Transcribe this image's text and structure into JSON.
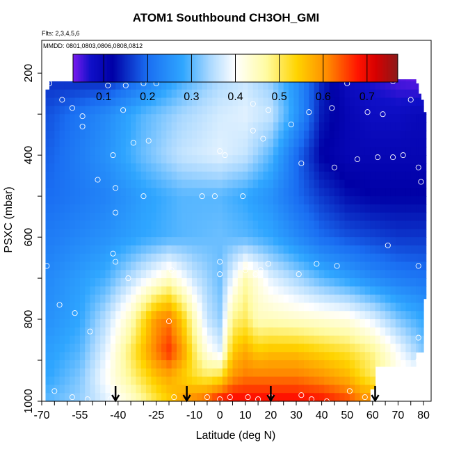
{
  "chart_data": {
    "type": "heatmap",
    "title": "ATOM1 Southbound CH3OH_GMI",
    "flights_note": "Flts: 2,3,4,5,6",
    "dates_note": "MMDD: 0801,0803,0806,0808,0812",
    "xlabel": "Latitude (deg N)",
    "ylabel": "PSXC (mbar)",
    "xlim": [
      -70,
      83
    ],
    "ylim": [
      1000,
      120
    ],
    "x_ticks": [
      -70,
      -55,
      -40,
      -25,
      -10,
      0,
      10,
      20,
      30,
      40,
      50,
      60,
      70,
      80
    ],
    "y_ticks": [
      200,
      400,
      600,
      800,
      1000
    ],
    "colorbar": {
      "min": 0.03,
      "max": 0.77,
      "ticks": [
        0.1,
        0.2,
        0.3,
        0.4,
        0.5,
        0.6,
        0.7
      ],
      "stops": [
        {
          "v": 0.03,
          "c": "#7a1bef"
        },
        {
          "v": 0.07,
          "c": "#1010c8"
        },
        {
          "v": 0.12,
          "c": "#0000a6"
        },
        {
          "v": 0.2,
          "c": "#1a6ef2"
        },
        {
          "v": 0.28,
          "c": "#2fa6ff"
        },
        {
          "v": 0.34,
          "c": "#a7d7ff"
        },
        {
          "v": 0.4,
          "c": "#ffffff"
        },
        {
          "v": 0.47,
          "c": "#fffba2"
        },
        {
          "v": 0.54,
          "c": "#ffd400"
        },
        {
          "v": 0.61,
          "c": "#ff8a00"
        },
        {
          "v": 0.68,
          "c": "#ff1300"
        },
        {
          "v": 0.72,
          "c": "#d60000"
        },
        {
          "v": 0.77,
          "c": "#8b1a1a"
        }
      ]
    },
    "field_anchors": [
      {
        "p": 200,
        "lats": [
          -67,
          -45,
          -30,
          -15,
          0,
          10,
          20,
          30,
          40,
          50,
          60,
          70,
          77
        ],
        "vals": [
          0.15,
          0.13,
          0.2,
          0.28,
          0.34,
          0.36,
          0.32,
          0.25,
          0.15,
          0.08,
          0.06,
          0.04,
          0.03
        ]
      },
      {
        "p": 300,
        "lats": [
          -67,
          -45,
          -30,
          -15,
          0,
          10,
          20,
          30,
          40,
          50,
          60,
          70,
          77
        ],
        "vals": [
          0.18,
          0.24,
          0.3,
          0.34,
          0.37,
          0.38,
          0.36,
          0.26,
          0.14,
          0.1,
          0.08,
          0.08,
          0.09
        ]
      },
      {
        "p": 400,
        "lats": [
          -67,
          -45,
          -30,
          -15,
          0,
          10,
          20,
          30,
          40,
          50,
          60,
          70,
          80
        ],
        "vals": [
          0.19,
          0.25,
          0.31,
          0.36,
          0.38,
          0.36,
          0.3,
          0.2,
          0.12,
          0.1,
          0.1,
          0.1,
          0.1
        ]
      },
      {
        "p": 500,
        "lats": [
          -67,
          -45,
          -30,
          -15,
          0,
          10,
          20,
          30,
          40,
          50,
          60,
          70,
          80
        ],
        "vals": [
          0.2,
          0.23,
          0.27,
          0.3,
          0.3,
          0.28,
          0.25,
          0.2,
          0.16,
          0.13,
          0.12,
          0.12,
          0.12
        ]
      },
      {
        "p": 600,
        "lats": [
          -67,
          -45,
          -30,
          -15,
          0,
          10,
          20,
          30,
          40,
          50,
          60,
          70,
          80
        ],
        "vals": [
          0.22,
          0.25,
          0.28,
          0.3,
          0.31,
          0.3,
          0.28,
          0.24,
          0.2,
          0.18,
          0.17,
          0.16,
          0.16
        ]
      },
      {
        "p": 700,
        "lats": [
          -67,
          -45,
          -30,
          -20,
          -10,
          0,
          10,
          20,
          30,
          40,
          50,
          60,
          70,
          80
        ],
        "vals": [
          0.24,
          0.29,
          0.38,
          0.44,
          0.36,
          0.31,
          0.46,
          0.38,
          0.34,
          0.3,
          0.27,
          0.24,
          0.22,
          0.21
        ]
      },
      {
        "p": 800,
        "lats": [
          -67,
          -55,
          -45,
          -35,
          -25,
          -20,
          -15,
          -10,
          -5,
          0,
          5,
          10,
          15,
          20,
          30,
          40,
          50,
          60,
          70,
          80
        ],
        "vals": [
          0.25,
          0.28,
          0.35,
          0.45,
          0.6,
          0.62,
          0.55,
          0.45,
          0.36,
          0.33,
          0.48,
          0.5,
          0.45,
          0.45,
          0.44,
          0.43,
          0.42,
          0.38,
          0.32,
          0.28
        ]
      },
      {
        "p": 880,
        "lats": [
          -67,
          -55,
          -45,
          -35,
          -25,
          -20,
          -15,
          -10,
          -5,
          0,
          5,
          10,
          15,
          20,
          30,
          40,
          50,
          60,
          70,
          80
        ],
        "vals": [
          0.27,
          0.3,
          0.38,
          0.5,
          0.62,
          0.66,
          0.6,
          0.5,
          0.42,
          0.38,
          0.55,
          0.58,
          0.55,
          0.56,
          0.56,
          0.54,
          0.52,
          0.48,
          0.4,
          0.32
        ]
      },
      {
        "p": 940,
        "lats": [
          -67,
          -55,
          -45,
          -35,
          -25,
          -20,
          -15,
          -10,
          -5,
          0,
          5,
          10,
          20,
          30,
          40,
          50,
          60,
          70
        ],
        "vals": [
          0.28,
          0.32,
          0.4,
          0.48,
          0.56,
          0.58,
          0.55,
          0.52,
          0.5,
          0.52,
          0.6,
          0.62,
          0.62,
          0.62,
          0.6,
          0.57,
          0.5,
          0.42
        ]
      },
      {
        "p": 990,
        "lats": [
          -67,
          -55,
          -45,
          -35,
          -25,
          -15,
          -5,
          0,
          5,
          10,
          20,
          30,
          40,
          50,
          56
        ],
        "vals": [
          0.3,
          0.33,
          0.38,
          0.44,
          0.52,
          0.58,
          0.62,
          0.66,
          0.68,
          0.68,
          0.68,
          0.68,
          0.67,
          0.64,
          0.6
        ]
      }
    ],
    "profile_coverage": {
      "lat_edges": [
        -68.5,
        -67,
        -65,
        -63,
        -61,
        -59,
        -57,
        -55,
        -53,
        -51,
        -49,
        -47,
        -45,
        -43,
        -41,
        -39,
        -37,
        -35,
        -33,
        -31,
        -29,
        -27,
        -25,
        -23,
        -21,
        -19,
        -17,
        -15,
        -13,
        -11,
        -9,
        -7,
        -5,
        -3,
        -1,
        1,
        3,
        5,
        7,
        9,
        11,
        13,
        15,
        17,
        19,
        21,
        23,
        25,
        27,
        29,
        31,
        33,
        35,
        37,
        39,
        41,
        43,
        45,
        47,
        49,
        51,
        53,
        55,
        57,
        59,
        61,
        63,
        65,
        67,
        69,
        71,
        73,
        75,
        77,
        78,
        79,
        80,
        81
      ],
      "p_top": [
        240,
        220,
        220,
        220,
        220,
        220,
        220,
        220,
        220,
        220,
        220,
        220,
        185,
        185,
        185,
        185,
        185,
        185,
        185,
        185,
        185,
        185,
        185,
        185,
        185,
        185,
        185,
        185,
        185,
        185,
        185,
        185,
        185,
        185,
        185,
        185,
        185,
        185,
        185,
        185,
        185,
        185,
        185,
        185,
        185,
        185,
        185,
        185,
        185,
        185,
        185,
        185,
        185,
        185,
        185,
        185,
        215,
        215,
        215,
        215,
        215,
        215,
        215,
        215,
        215,
        215,
        215,
        215,
        215,
        215,
        215,
        215,
        215,
        225,
        250,
        265,
        295,
        300
      ],
      "p_bot": [
        1000,
        1000,
        1000,
        1000,
        1000,
        1000,
        1000,
        1000,
        1000,
        1000,
        1000,
        1000,
        1000,
        1000,
        1000,
        1000,
        1000,
        1000,
        1000,
        1000,
        1000,
        1000,
        1000,
        1000,
        1000,
        1000,
        1000,
        1000,
        1000,
        1000,
        1000,
        1000,
        1000,
        1000,
        1000,
        1000,
        1000,
        1000,
        1000,
        1000,
        1000,
        1000,
        1000,
        1000,
        1000,
        1000,
        1000,
        1000,
        1000,
        1000,
        1000,
        1000,
        1000,
        1000,
        1000,
        1000,
        1000,
        1000,
        1000,
        1000,
        1000,
        1000,
        1000,
        1000,
        970,
        915,
        915,
        915,
        915,
        915,
        915,
        915,
        915,
        880,
        880,
        880,
        750,
        750
      ]
    },
    "observations": [
      {
        "lat": -68,
        "p": 225
      },
      {
        "lat": -67,
        "p": 225
      },
      {
        "lat": -62,
        "p": 265
      },
      {
        "lat": -58,
        "p": 285
      },
      {
        "lat": -54,
        "p": 305
      },
      {
        "lat": -54,
        "p": 330
      },
      {
        "lat": -48,
        "p": 460
      },
      {
        "lat": -44,
        "p": 230
      },
      {
        "lat": -43,
        "p": 200
      },
      {
        "lat": -37,
        "p": 230
      },
      {
        "lat": -38,
        "p": 290
      },
      {
        "lat": -30,
        "p": 225
      },
      {
        "lat": -25,
        "p": 225
      },
      {
        "lat": -34,
        "p": 370
      },
      {
        "lat": -42,
        "p": 400
      },
      {
        "lat": -41,
        "p": 480
      },
      {
        "lat": -41,
        "p": 540
      },
      {
        "lat": -30,
        "p": 500
      },
      {
        "lat": -28,
        "p": 365
      },
      {
        "lat": -68,
        "p": 670
      },
      {
        "lat": -63,
        "p": 765
      },
      {
        "lat": -57,
        "p": 785
      },
      {
        "lat": -51,
        "p": 830
      },
      {
        "lat": -42,
        "p": 640
      },
      {
        "lat": -41,
        "p": 660
      },
      {
        "lat": -36,
        "p": 700
      },
      {
        "lat": -19,
        "p": 680
      },
      {
        "lat": -20,
        "p": 805
      },
      {
        "lat": -65,
        "p": 975
      },
      {
        "lat": -58,
        "p": 990
      },
      {
        "lat": -52,
        "p": 995
      },
      {
        "lat": -43,
        "p": 995
      },
      {
        "lat": -18,
        "p": 990
      },
      {
        "lat": -5,
        "p": 210
      },
      {
        "lat": -7,
        "p": 500
      },
      {
        "lat": -2,
        "p": 500
      },
      {
        "lat": 0,
        "p": 390
      },
      {
        "lat": 2,
        "p": 400
      },
      {
        "lat": 0,
        "p": 660
      },
      {
        "lat": 0,
        "p": 690
      },
      {
        "lat": 0,
        "p": 995
      },
      {
        "lat": 4,
        "p": 990
      },
      {
        "lat": 9,
        "p": 500
      },
      {
        "lat": 13,
        "p": 340
      },
      {
        "lat": 13,
        "p": 275
      },
      {
        "lat": 19,
        "p": 290
      },
      {
        "lat": 10,
        "p": 680
      },
      {
        "lat": 14,
        "p": 690
      },
      {
        "lat": 16,
        "p": 680
      },
      {
        "lat": 19,
        "p": 665
      },
      {
        "lat": 11,
        "p": 990
      },
      {
        "lat": 15,
        "p": 995
      },
      {
        "lat": 20,
        "p": 990
      },
      {
        "lat": 17,
        "p": 360
      },
      {
        "lat": 23,
        "p": 185
      },
      {
        "lat": 26,
        "p": 210
      },
      {
        "lat": 28,
        "p": 325
      },
      {
        "lat": 35,
        "p": 295
      },
      {
        "lat": 32,
        "p": 420
      },
      {
        "lat": 31,
        "p": 690
      },
      {
        "lat": 38,
        "p": 665
      },
      {
        "lat": 32,
        "p": 985
      },
      {
        "lat": 36,
        "p": 995
      },
      {
        "lat": 42,
        "p": 1000
      },
      {
        "lat": 41,
        "p": 210
      },
      {
        "lat": 44,
        "p": 285
      },
      {
        "lat": 45,
        "p": 430
      },
      {
        "lat": 47,
        "p": 215
      },
      {
        "lat": 50,
        "p": 225
      },
      {
        "lat": 46,
        "p": 670
      },
      {
        "lat": 54,
        "p": 410
      },
      {
        "lat": 58,
        "p": 295
      },
      {
        "lat": 62,
        "p": 405
      },
      {
        "lat": 64,
        "p": 300
      },
      {
        "lat": 68,
        "p": 220
      },
      {
        "lat": 68,
        "p": 405
      },
      {
        "lat": 72,
        "p": 400
      },
      {
        "lat": 75,
        "p": 265
      },
      {
        "lat": 79,
        "p": 465
      },
      {
        "lat": 78,
        "p": 430
      },
      {
        "lat": 78,
        "p": 845
      },
      {
        "lat": 78,
        "p": 900
      },
      {
        "lat": 78,
        "p": 670
      },
      {
        "lat": 66,
        "p": 620
      },
      {
        "lat": 73,
        "p": 990
      },
      {
        "lat": 51,
        "p": 975
      },
      {
        "lat": 57,
        "p": 990
      },
      {
        "lat": -5,
        "p": 990
      }
    ],
    "arrows_lat": [
      -41,
      -13,
      20,
      61
    ]
  }
}
